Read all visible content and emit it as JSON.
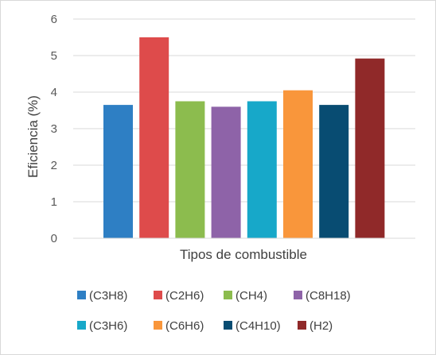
{
  "chart_data": {
    "type": "bar",
    "title": "",
    "xlabel": "Tipos de combustible",
    "ylabel": "Eficiencia (%)",
    "ylim": [
      0,
      6
    ],
    "yticks": [
      0,
      1,
      2,
      3,
      4,
      5,
      6
    ],
    "grid": true,
    "legend_position": "bottom",
    "series": [
      {
        "name": "(C3H8)",
        "value": 3.65,
        "color": "#2e7fc4"
      },
      {
        "name": "(C2H6)",
        "value": 5.5,
        "color": "#de4b4b"
      },
      {
        "name": "(CH4)",
        "value": 3.75,
        "color": "#8cbc4e"
      },
      {
        "name": "(C8H18)",
        "value": 3.6,
        "color": "#8e63a8"
      },
      {
        "name": "(C3H6)",
        "value": 3.75,
        "color": "#17a8c9"
      },
      {
        "name": "(C6H6)",
        "value": 4.05,
        "color": "#f9963b"
      },
      {
        "name": "(C4H10)",
        "value": 3.65,
        "color": "#084c72"
      },
      {
        "name": "(H2)",
        "value": 4.92,
        "color": "#902929"
      }
    ]
  }
}
